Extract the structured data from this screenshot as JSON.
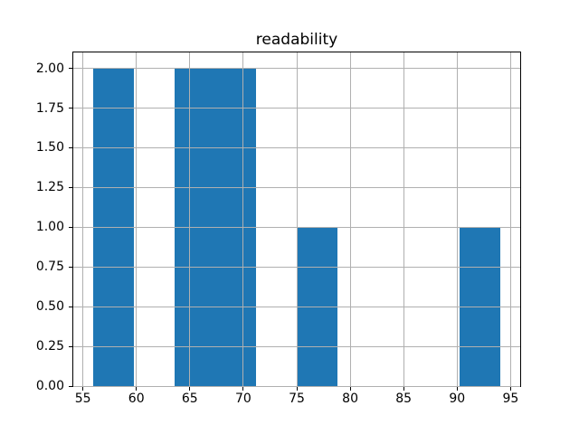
{
  "chart_data": {
    "type": "bar",
    "subtype": "histogram",
    "title": "readability",
    "xlabel": "",
    "ylabel": "",
    "bin_edges": [
      56,
      59.8,
      63.6,
      67.4,
      71.2,
      75,
      78.8,
      82.6,
      86.4,
      90.2,
      94
    ],
    "counts": [
      2,
      0,
      2,
      2,
      0,
      1,
      0,
      0,
      0,
      1
    ],
    "xlim": [
      54.1,
      95.9
    ],
    "ylim": [
      0,
      2.1
    ],
    "x_tick_values": [
      55,
      60,
      65,
      70,
      75,
      80,
      85,
      90,
      95
    ],
    "x_tick_labels": [
      "55",
      "60",
      "65",
      "70",
      "75",
      "80",
      "85",
      "90",
      "95"
    ],
    "y_tick_values": [
      0,
      0.25,
      0.5,
      0.75,
      1.0,
      1.25,
      1.5,
      1.75,
      2.0
    ],
    "y_tick_labels": [
      "0.00",
      "0.25",
      "0.50",
      "0.75",
      "1.00",
      "1.25",
      "1.50",
      "1.75",
      "2.00"
    ],
    "grid": true,
    "grid_above_bars": true,
    "legend": null,
    "colors": {
      "bar_fill": "#1f77b4",
      "grid": "#b0b0b0",
      "spine": "#000000",
      "background": "#ffffff",
      "text": "#000000"
    }
  }
}
